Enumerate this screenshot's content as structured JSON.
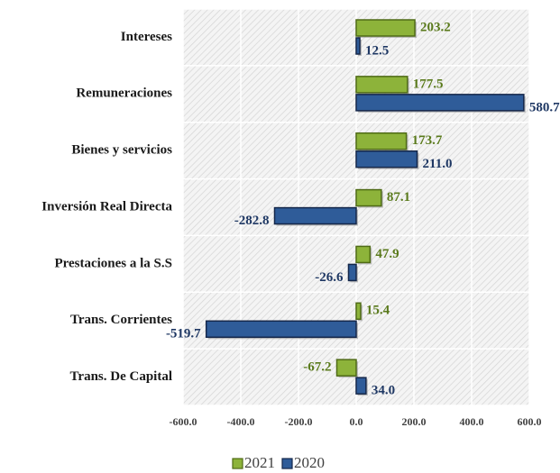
{
  "chart_data": {
    "type": "barh",
    "categories": [
      "Intereses",
      "Remuneraciones",
      "Bienes y servicios",
      "Inversión Real Directa",
      "Prestaciones a la S.S",
      "Trans. Corrientes",
      "Trans. De Capital"
    ],
    "series": [
      {
        "name": "2021",
        "color": "#8db33a",
        "edge": "#4f6b16",
        "label_color": "#5a7a1c",
        "values": [
          203.2,
          177.5,
          173.7,
          87.1,
          47.9,
          15.4,
          -67.2
        ],
        "value_labels": [
          "203.2",
          "177.5",
          "173.7",
          "87.1",
          "47.9",
          "15.4",
          "-67.2"
        ]
      },
      {
        "name": "2020",
        "color": "#2f5c99",
        "edge": "#15274a",
        "label_color": "#1f3864",
        "values": [
          12.5,
          580.7,
          211.0,
          -282.8,
          -26.6,
          -519.7,
          34.0
        ],
        "value_labels": [
          "12.5",
          "580.7",
          "211.0",
          "-282.8",
          "-26.6",
          "-519.7",
          "34.0"
        ]
      }
    ],
    "xlim": [
      -600,
      600
    ],
    "xticks": [
      {
        "value": -600,
        "label": "-600.0"
      },
      {
        "value": -400,
        "label": "-400.0"
      },
      {
        "value": -200,
        "label": "-200.0"
      },
      {
        "value": 0,
        "label": "0.0"
      },
      {
        "value": 200,
        "label": "200.0"
      },
      {
        "value": 400,
        "label": "400.0"
      },
      {
        "value": 600,
        "label": "600.0"
      }
    ],
    "grid": true,
    "legend": "bottom"
  }
}
